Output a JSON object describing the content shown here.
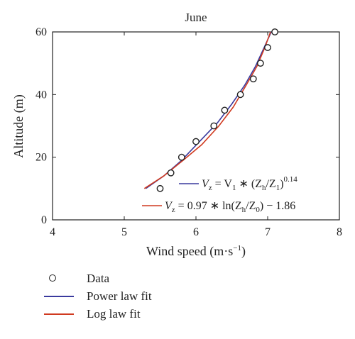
{
  "chart_data": {
    "type": "line",
    "title": "June",
    "xlabel": "Wind speed (m·s",
    "xlabel_sup": "−1",
    "xlabel_end": ")",
    "ylabel": "Altitude (m)",
    "xlim": [
      4,
      8
    ],
    "ylim": [
      0,
      60
    ],
    "xticks": [
      "4",
      "5",
      "6",
      "7",
      "8"
    ],
    "yticks": [
      "0",
      "20",
      "40",
      "60"
    ],
    "grid": false,
    "series": [
      {
        "name": "Data",
        "kind": "scatter",
        "color": "#222222",
        "x": [
          5.5,
          5.65,
          5.8,
          6.0,
          6.25,
          6.4,
          6.62,
          6.8,
          6.9,
          7.0,
          7.1
        ],
        "y": [
          10,
          15,
          20,
          25,
          30,
          35,
          40,
          45,
          50,
          55,
          60
        ]
      },
      {
        "name": "Power law fit",
        "kind": "line",
        "color": "#3a3a9e",
        "x": [
          5.3,
          5.55,
          5.8,
          6.05,
          6.3,
          6.5,
          6.68,
          6.83,
          6.95,
          7.05
        ],
        "y": [
          10,
          14,
          19,
          25,
          31,
          37,
          43,
          49,
          55,
          60
        ]
      },
      {
        "name": "Log law fit",
        "kind": "line",
        "color": "#d03a20",
        "x": [
          5.28,
          5.55,
          5.82,
          6.08,
          6.32,
          6.52,
          6.7,
          6.85,
          6.96,
          7.04
        ],
        "y": [
          10,
          14,
          19,
          24,
          30,
          36,
          43,
          49,
          55,
          60
        ]
      }
    ],
    "annotations": {
      "power_eq": {
        "color": "#3a3a9e",
        "lhs_main": "V",
        "lhs_sub": "z",
        "eq1": " = V",
        "eq1_sub": "1",
        "eq2": " ∗ (Z",
        "eq2_sub": "h",
        "eq3": "/Z",
        "eq3_sub": "1",
        "eq4": ")",
        "exponent": "0.14"
      },
      "log_eq": {
        "color": "#d03a20",
        "lhs_main": "V",
        "lhs_sub": "z",
        "eq1": " = 0.97 ∗ ln(Z",
        "eq1_sub": "h",
        "eq2": "/Z",
        "eq2_sub": "0",
        "eq3": ") − 1.86"
      }
    }
  },
  "legend": {
    "items": [
      {
        "label": "Data",
        "kind": "marker",
        "color": "#222222"
      },
      {
        "label": "Power law fit",
        "kind": "line",
        "color": "#3a3a9e"
      },
      {
        "label": "Log law fit",
        "kind": "line",
        "color": "#d03a20"
      }
    ]
  }
}
